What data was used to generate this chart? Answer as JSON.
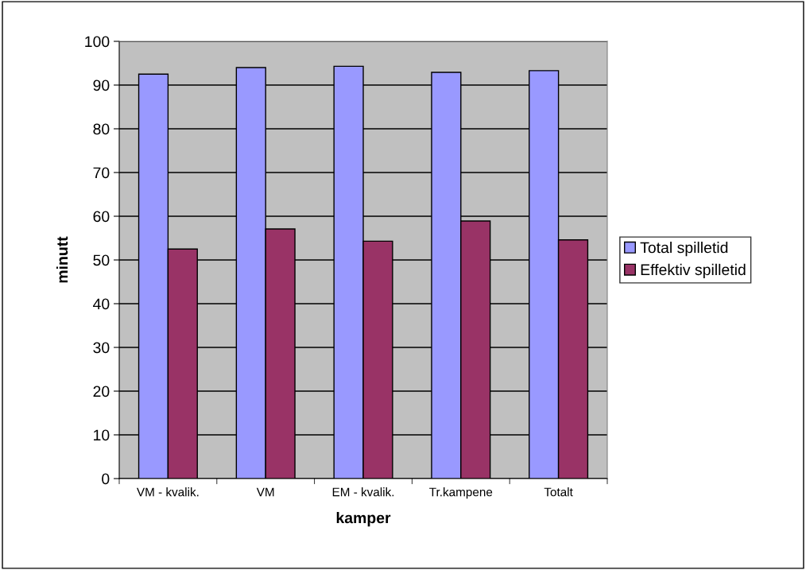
{
  "chart_data": {
    "type": "bar",
    "xlabel": "kamper",
    "ylabel": "minutt",
    "categories": [
      "VM - kvalik.",
      "VM",
      "EM - kvalik.",
      "Tr.kampene",
      "Totalt"
    ],
    "series": [
      {
        "name": "Total spilletid",
        "color": "#9999ff",
        "values": [
          92.5,
          94.0,
          94.3,
          92.9,
          93.3
        ]
      },
      {
        "name": "Effektiv spilletid",
        "color": "#993366",
        "values": [
          52.5,
          57.1,
          54.3,
          58.9,
          54.6
        ]
      }
    ],
    "ylim": [
      0,
      100
    ],
    "yticks": [
      0,
      10,
      20,
      30,
      40,
      50,
      60,
      70,
      80,
      90,
      100
    ],
    "grid": "y",
    "legend": "right"
  }
}
